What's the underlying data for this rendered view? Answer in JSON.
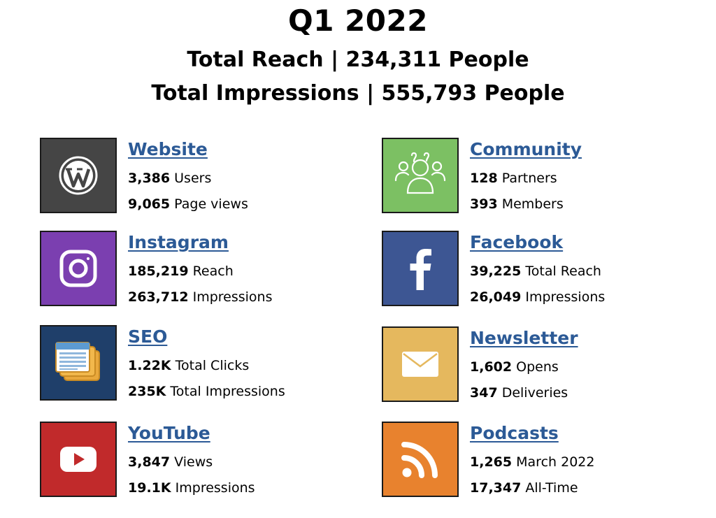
{
  "header": {
    "title": "Q1 2022",
    "reach_line": "Total Reach | 234,311 People",
    "impressions_line": "Total Impressions | 555,793 People"
  },
  "cards": [
    {
      "name": "Website",
      "icon": "wordpress-icon",
      "color": "#454545",
      "stats": [
        {
          "value": "3,386",
          "label": " Users"
        },
        {
          "value": "9,065",
          "label": " Page views"
        }
      ]
    },
    {
      "name": "Community",
      "icon": "community-icon",
      "color": "#7cc063",
      "stats": [
        {
          "value": "128",
          "label": " Partners"
        },
        {
          "value": "393",
          "label": " Members"
        }
      ]
    },
    {
      "name": "Instagram",
      "icon": "instagram-icon",
      "color": "#7b3fb0",
      "stats": [
        {
          "value": "185,219",
          "label": " Reach"
        },
        {
          "value": "263,712",
          "label": " Impressions"
        }
      ]
    },
    {
      "name": "Facebook",
      "icon": "facebook-icon",
      "color": "#3d5693",
      "stats": [
        {
          "value": "39,225",
          "label": " Total Reach"
        },
        {
          "value": "26,049",
          "label": " Impressions"
        }
      ]
    },
    {
      "name": "SEO",
      "icon": "newspaper-icon",
      "color": "#1f3f6a",
      "stats": [
        {
          "value": "1.22K",
          "label": " Total Clicks"
        },
        {
          "value": "235K",
          "label": " Total Impressions"
        }
      ]
    },
    {
      "name": "Newsletter",
      "icon": "envelope-icon",
      "color": "#e5b85e",
      "stats": [
        {
          "value": "1,602",
          "label": " Opens"
        },
        {
          "value": "347",
          "label": " Deliveries"
        }
      ]
    },
    {
      "name": "YouTube",
      "icon": "youtube-icon",
      "color": "#c12a2b",
      "stats": [
        {
          "value": "3,847",
          "label": " Views"
        },
        {
          "value": "19.1K",
          "label": " Impressions"
        }
      ]
    },
    {
      "name": "Podcasts",
      "icon": "rss-icon",
      "color": "#e8822e",
      "stats": [
        {
          "value": "1,265",
          "label": " March 2022"
        },
        {
          "value": "17,347",
          "label": " All-Time"
        }
      ]
    }
  ]
}
